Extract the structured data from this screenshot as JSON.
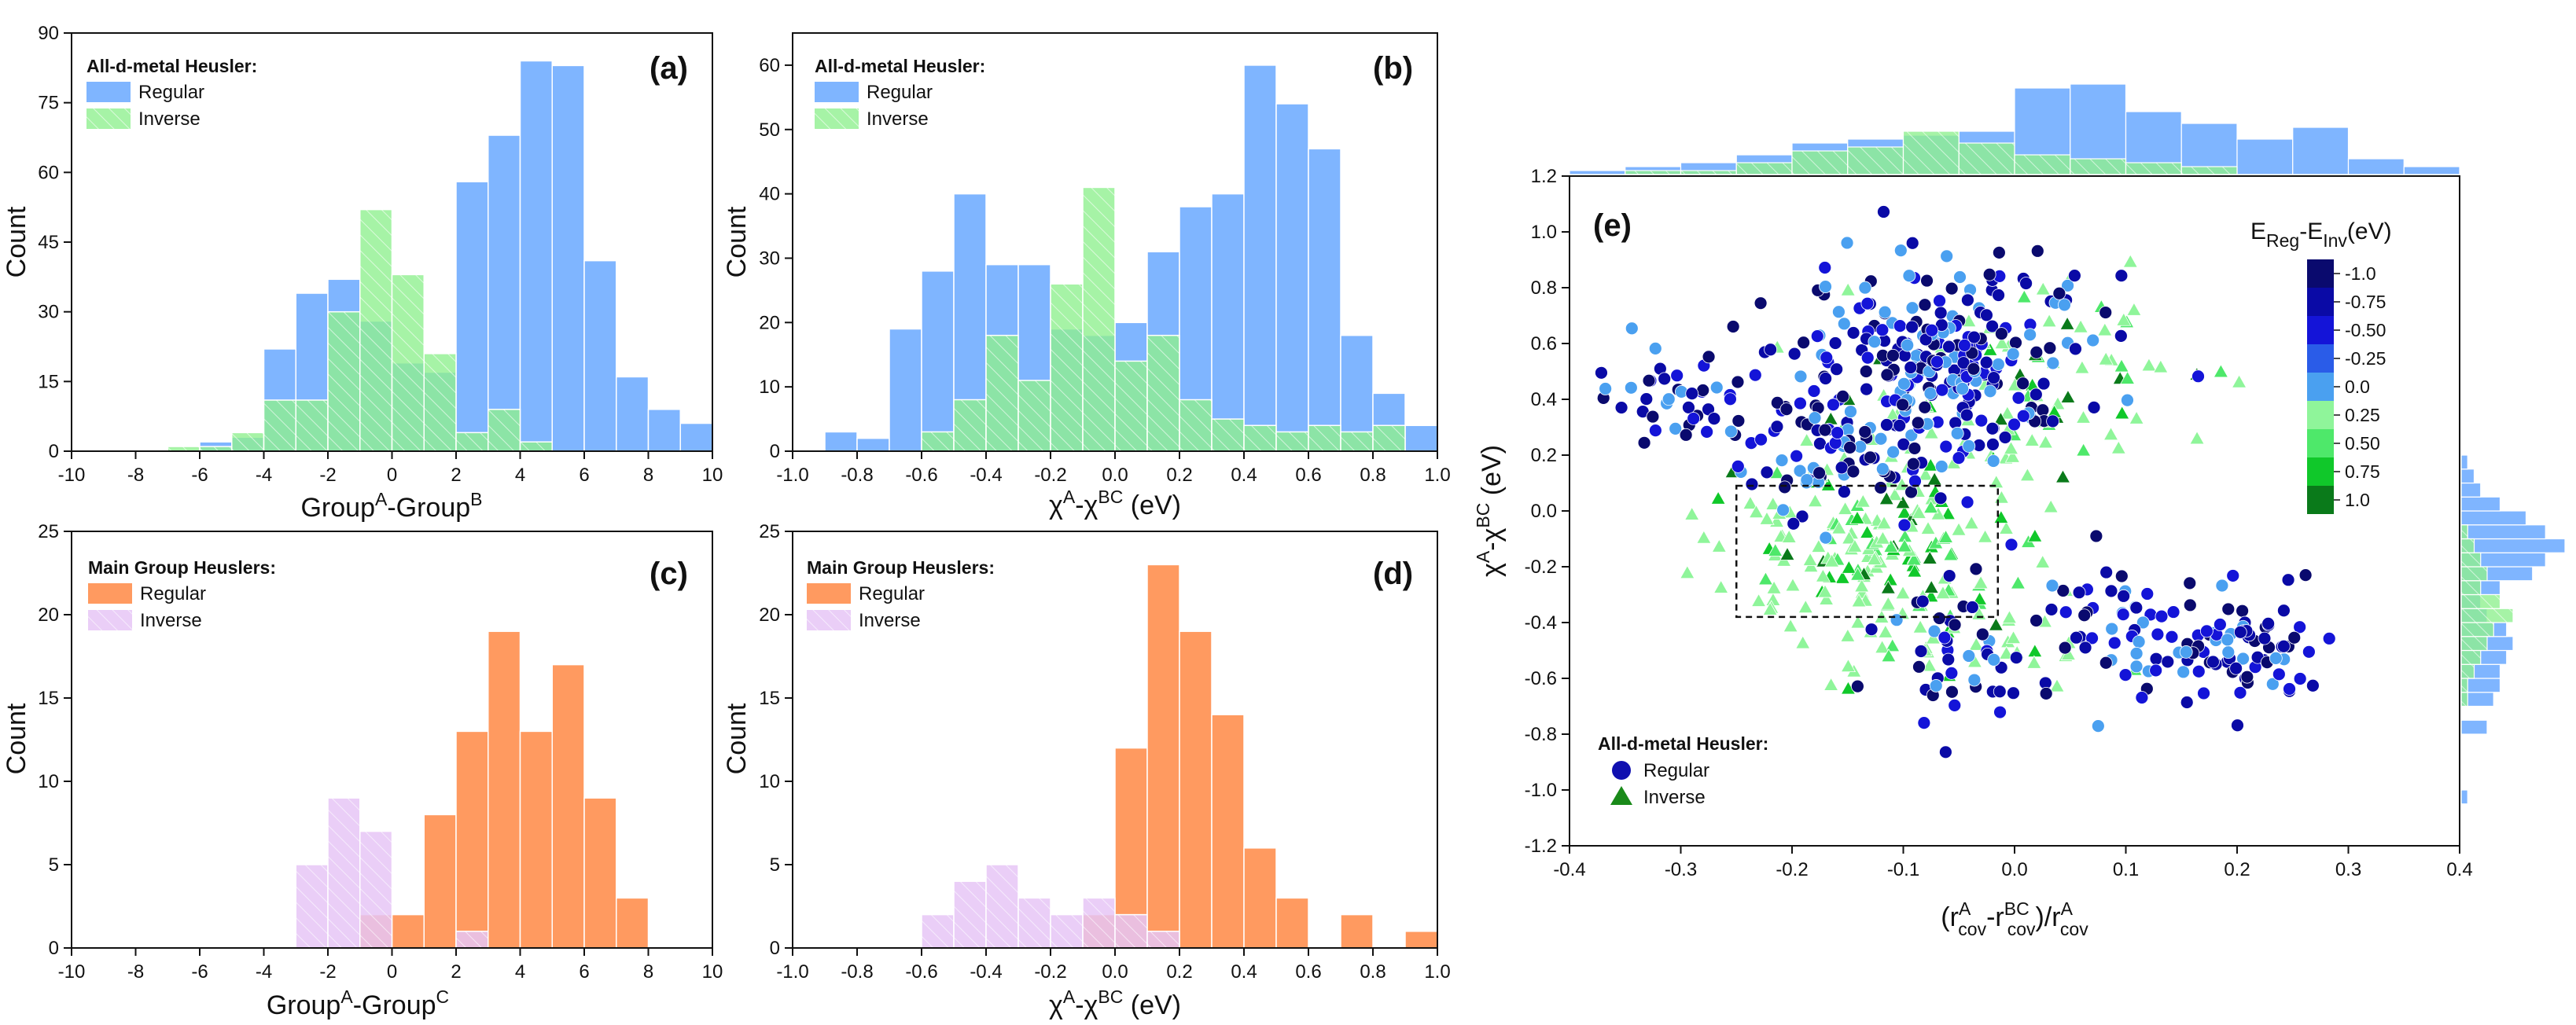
{
  "colors": {
    "regular_ad": "#7fb5ff",
    "inverse_ad": "#90f090",
    "regular_mg": "#ff9a60",
    "inverse_mg": "#e6c6f6",
    "axis": "#111111",
    "guide_box": "#111111"
  },
  "chart_data": [
    {
      "id": "a",
      "type": "bar",
      "panel_label": "(a)",
      "xlabel": "GroupA-GroupB",
      "xlabel_parts": {
        "base1": "Group",
        "sup1": "A",
        "mid": "-Group",
        "sup2": "B"
      },
      "ylabel": "Count",
      "xlim": [
        -10,
        10
      ],
      "ylim": [
        0,
        90
      ],
      "xticks": [
        "-10",
        "-8",
        "-6",
        "-4",
        "-2",
        "0",
        "2",
        "4",
        "6",
        "8",
        "10"
      ],
      "xtick_values": [
        -10,
        -8,
        -6,
        -4,
        -2,
        0,
        2,
        4,
        6,
        8,
        10
      ],
      "yticks": [
        "0",
        "15",
        "30",
        "45",
        "60",
        "75",
        "90"
      ],
      "ytick_values": [
        0,
        15,
        30,
        45,
        60,
        75,
        90
      ],
      "legend_title": "All-d-metal Heusler:",
      "legend_position": "top-left",
      "bin_width": 1,
      "series": [
        {
          "name": "Regular",
          "color_key": "regular_ad",
          "bins": [
            {
              "x0": -8,
              "v": 0
            },
            {
              "x0": -7,
              "v": 0
            },
            {
              "x0": -6,
              "v": 2
            },
            {
              "x0": -5,
              "v": 3
            },
            {
              "x0": -4,
              "v": 22
            },
            {
              "x0": -3,
              "v": 34
            },
            {
              "x0": -2,
              "v": 37
            },
            {
              "x0": -1,
              "v": 28
            },
            {
              "x0": 0,
              "v": 19
            },
            {
              "x0": 1,
              "v": 17
            },
            {
              "x0": 2,
              "v": 58
            },
            {
              "x0": 3,
              "v": 68
            },
            {
              "x0": 4,
              "v": 84
            },
            {
              "x0": 5,
              "v": 83
            },
            {
              "x0": 6,
              "v": 41
            },
            {
              "x0": 7,
              "v": 16
            },
            {
              "x0": 8,
              "v": 9
            },
            {
              "x0": 9,
              "v": 6
            }
          ]
        },
        {
          "name": "Inverse",
          "color_key": "inverse_ad",
          "bins": [
            {
              "x0": -8,
              "v": 0.3
            },
            {
              "x0": -7,
              "v": 1
            },
            {
              "x0": -6,
              "v": 1
            },
            {
              "x0": -5,
              "v": 4
            },
            {
              "x0": -4,
              "v": 11
            },
            {
              "x0": -3,
              "v": 11
            },
            {
              "x0": -2,
              "v": 30
            },
            {
              "x0": -1,
              "v": 52
            },
            {
              "x0": 0,
              "v": 38
            },
            {
              "x0": 1,
              "v": 21
            },
            {
              "x0": 2,
              "v": 4
            },
            {
              "x0": 3,
              "v": 9
            },
            {
              "x0": 4,
              "v": 2
            }
          ]
        }
      ]
    },
    {
      "id": "b",
      "type": "bar",
      "panel_label": "(b)",
      "xlabel": "χA-χBC (eV)",
      "xlabel_parts": {
        "base1": "χ",
        "sup1": "A",
        "mid": "-χ",
        "sup2": "BC",
        "tail": " (eV)"
      },
      "ylabel": "Count",
      "xlim": [
        -1.0,
        1.0
      ],
      "ylim": [
        0,
        65
      ],
      "xticks": [
        "-1.0",
        "-0.8",
        "-0.6",
        "-0.4",
        "-0.2",
        "0.0",
        "0.2",
        "0.4",
        "0.6",
        "0.8",
        "1.0"
      ],
      "xtick_values": [
        -1.0,
        -0.8,
        -0.6,
        -0.4,
        -0.2,
        0.0,
        0.2,
        0.4,
        0.6,
        0.8,
        1.0
      ],
      "yticks": [
        "0",
        "10",
        "20",
        "30",
        "40",
        "50",
        "60"
      ],
      "ytick_values": [
        0,
        10,
        20,
        30,
        40,
        50,
        60
      ],
      "legend_title": "All-d-metal Heusler:",
      "legend_position": "top-left",
      "bin_width": 0.1,
      "series": [
        {
          "name": "Regular",
          "color_key": "regular_ad",
          "bins": [
            {
              "x0": -0.9,
              "v": 3
            },
            {
              "x0": -0.8,
              "v": 2
            },
            {
              "x0": -0.7,
              "v": 19
            },
            {
              "x0": -0.6,
              "v": 28
            },
            {
              "x0": -0.5,
              "v": 40
            },
            {
              "x0": -0.4,
              "v": 29
            },
            {
              "x0": -0.3,
              "v": 29
            },
            {
              "x0": -0.2,
              "v": 19
            },
            {
              "x0": -0.1,
              "v": 18
            },
            {
              "x0": 0.0,
              "v": 20
            },
            {
              "x0": 0.1,
              "v": 31
            },
            {
              "x0": 0.2,
              "v": 38
            },
            {
              "x0": 0.3,
              "v": 40
            },
            {
              "x0": 0.4,
              "v": 60
            },
            {
              "x0": 0.5,
              "v": 54
            },
            {
              "x0": 0.6,
              "v": 47
            },
            {
              "x0": 0.7,
              "v": 18
            },
            {
              "x0": 0.8,
              "v": 9
            },
            {
              "x0": 0.9,
              "v": 4
            }
          ]
        },
        {
          "name": "Inverse",
          "color_key": "inverse_ad",
          "bins": [
            {
              "x0": -0.6,
              "v": 3
            },
            {
              "x0": -0.5,
              "v": 8
            },
            {
              "x0": -0.4,
              "v": 18
            },
            {
              "x0": -0.3,
              "v": 11
            },
            {
              "x0": -0.2,
              "v": 26
            },
            {
              "x0": -0.1,
              "v": 41
            },
            {
              "x0": 0.0,
              "v": 14
            },
            {
              "x0": 0.1,
              "v": 18
            },
            {
              "x0": 0.2,
              "v": 8
            },
            {
              "x0": 0.3,
              "v": 5
            },
            {
              "x0": 0.4,
              "v": 4
            },
            {
              "x0": 0.5,
              "v": 3
            },
            {
              "x0": 0.6,
              "v": 4
            },
            {
              "x0": 0.7,
              "v": 3
            },
            {
              "x0": 0.8,
              "v": 4
            }
          ]
        }
      ]
    },
    {
      "id": "c",
      "type": "bar",
      "panel_label": "(c)",
      "xlabel": "GroupA-GroupC",
      "xlabel_parts": {
        "base1": "Group",
        "sup1": "A",
        "mid": "-Group",
        "sup2": "C"
      },
      "ylabel": "Count",
      "xlim": [
        -10,
        10
      ],
      "ylim": [
        0,
        25
      ],
      "xticks": [
        "-10",
        "-8",
        "-6",
        "-4",
        "-2",
        "0",
        "2",
        "4",
        "6",
        "8",
        "10"
      ],
      "xtick_values": [
        -10,
        -8,
        -6,
        -4,
        -2,
        0,
        2,
        4,
        6,
        8,
        10
      ],
      "yticks": [
        "0",
        "5",
        "10",
        "15",
        "20",
        "25"
      ],
      "ytick_values": [
        0,
        5,
        10,
        15,
        20,
        25
      ],
      "legend_title": "Main Group Heuslers:",
      "legend_position": "top-left",
      "bin_width": 1,
      "series": [
        {
          "name": "Regular",
          "color_key": "regular_mg",
          "bins": [
            {
              "x0": -1,
              "v": 2
            },
            {
              "x0": 0,
              "v": 2
            },
            {
              "x0": 1,
              "v": 8
            },
            {
              "x0": 2,
              "v": 13
            },
            {
              "x0": 3,
              "v": 19
            },
            {
              "x0": 4,
              "v": 13
            },
            {
              "x0": 5,
              "v": 17
            },
            {
              "x0": 6,
              "v": 9
            },
            {
              "x0": 7,
              "v": 3
            }
          ]
        },
        {
          "name": "Inverse",
          "color_key": "inverse_mg",
          "bins": [
            {
              "x0": -3,
              "v": 5
            },
            {
              "x0": -2,
              "v": 9
            },
            {
              "x0": -1,
              "v": 7
            },
            {
              "x0": 2,
              "v": 1
            }
          ]
        }
      ]
    },
    {
      "id": "d",
      "type": "bar",
      "panel_label": "(d)",
      "xlabel": "χA-χBC (eV)",
      "xlabel_parts": {
        "base1": "χ",
        "sup1": "A",
        "mid": "-χ",
        "sup2": "BC",
        "tail": " (eV)"
      },
      "ylabel": "Count",
      "xlim": [
        -1.0,
        1.0
      ],
      "ylim": [
        0,
        25
      ],
      "xticks": [
        "-1.0",
        "-0.8",
        "-0.6",
        "-0.4",
        "-0.2",
        "0.0",
        "0.2",
        "0.4",
        "0.6",
        "0.8",
        "1.0"
      ],
      "xtick_values": [
        -1.0,
        -0.8,
        -0.6,
        -0.4,
        -0.2,
        0.0,
        0.2,
        0.4,
        0.6,
        0.8,
        1.0
      ],
      "yticks": [
        "0",
        "5",
        "10",
        "15",
        "20",
        "25"
      ],
      "ytick_values": [
        0,
        5,
        10,
        15,
        20,
        25
      ],
      "legend_title": "Main Group Heuslers:",
      "legend_position": "top-left",
      "bin_width": 0.1,
      "series": [
        {
          "name": "Regular",
          "color_key": "regular_mg",
          "bins": [
            {
              "x0": -0.1,
              "v": 2
            },
            {
              "x0": 0.0,
              "v": 12
            },
            {
              "x0": 0.1,
              "v": 23
            },
            {
              "x0": 0.2,
              "v": 19
            },
            {
              "x0": 0.3,
              "v": 14
            },
            {
              "x0": 0.4,
              "v": 6
            },
            {
              "x0": 0.5,
              "v": 3
            },
            {
              "x0": 0.7,
              "v": 2
            },
            {
              "x0": 0.9,
              "v": 1
            }
          ]
        },
        {
          "name": "Inverse",
          "color_key": "inverse_mg",
          "bins": [
            {
              "x0": -0.6,
              "v": 2
            },
            {
              "x0": -0.5,
              "v": 4
            },
            {
              "x0": -0.4,
              "v": 5
            },
            {
              "x0": -0.3,
              "v": 3
            },
            {
              "x0": -0.2,
              "v": 2
            },
            {
              "x0": -0.1,
              "v": 3
            },
            {
              "x0": 0.0,
              "v": 2
            },
            {
              "x0": 0.1,
              "v": 1
            }
          ]
        }
      ]
    },
    {
      "id": "e",
      "type": "scatter",
      "panel_label": "(e)",
      "xlabel": "(rAcov-rBCcov)/rAcov",
      "ylabel": "χA-χBC (eV)",
      "xlim": [
        -0.4,
        0.4
      ],
      "ylim": [
        -1.2,
        1.2
      ],
      "xticks": [
        "-0.4",
        "-0.3",
        "-0.2",
        "-0.1",
        "0.0",
        "0.1",
        "0.2",
        "0.3",
        "0.4"
      ],
      "xtick_values": [
        -0.4,
        -0.3,
        -0.2,
        -0.1,
        0.0,
        0.1,
        0.2,
        0.3,
        0.4
      ],
      "yticks": [
        "-1.2",
        "-1.0",
        "-0.8",
        "-0.6",
        "-0.4",
        "-0.2",
        "0.0",
        "0.2",
        "0.4",
        "0.6",
        "0.8",
        "1.0",
        "1.2"
      ],
      "ytick_values": [
        -1.2,
        -1.0,
        -0.8,
        -0.6,
        -0.4,
        -0.2,
        0.0,
        0.2,
        0.4,
        0.6,
        0.8,
        1.0,
        1.2
      ],
      "legend_title": "All-d-metal Heusler:",
      "legend_position": "bottom-left",
      "legend_items": [
        {
          "name": "Regular",
          "marker": "circle",
          "color": "#1010b0"
        },
        {
          "name": "Inverse",
          "marker": "triangle",
          "color": "#1a8a1a"
        }
      ],
      "colorbar": {
        "title": "EReg-EInv(eV)",
        "title_parts": {
          "base1": "E",
          "sub1": "Reg",
          "mid": "-E",
          "sub2": "Inv",
          "tail": "(eV)"
        },
        "ticks": [
          "-1.0",
          "-0.75",
          "-0.50",
          "-0.25",
          "0.0",
          "0.25",
          "0.50",
          "0.75",
          "1.0"
        ],
        "colors": [
          "#0a0a6e",
          "#0a0aa6",
          "#1414d8",
          "#2a5ce8",
          "#4aa0f0",
          "#8ff59a",
          "#4ee86a",
          "#10c82a",
          "#0a7a1a"
        ]
      },
      "guide_box": {
        "x": [
          -0.25,
          -0.015
        ],
        "y": [
          -0.38,
          0.09
        ]
      },
      "clusters": [
        {
          "kind": "regular",
          "cx": -0.06,
          "cy": 0.55,
          "sx": 0.06,
          "sy": 0.18,
          "n": 260,
          "seed": 11
        },
        {
          "kind": "regular",
          "cx": -0.3,
          "cy": 0.38,
          "sx": 0.05,
          "sy": 0.09,
          "n": 45,
          "seed": 12
        },
        {
          "kind": "regular",
          "cx": -0.17,
          "cy": 0.2,
          "sx": 0.05,
          "sy": 0.12,
          "n": 70,
          "seed": 13
        },
        {
          "kind": "regular",
          "cx": 0.2,
          "cy": -0.5,
          "sx": 0.04,
          "sy": 0.09,
          "n": 65,
          "seed": 14
        },
        {
          "kind": "regular",
          "cx": 0.07,
          "cy": -0.38,
          "sx": 0.07,
          "sy": 0.14,
          "n": 70,
          "seed": 15
        },
        {
          "kind": "regular",
          "cx": -0.05,
          "cy": -0.6,
          "sx": 0.05,
          "sy": 0.12,
          "n": 35,
          "seed": 16
        },
        {
          "kind": "inverse",
          "cx": -0.13,
          "cy": -0.12,
          "sx": 0.07,
          "sy": 0.16,
          "n": 170,
          "seed": 21
        },
        {
          "kind": "inverse",
          "cx": 0.0,
          "cy": 0.42,
          "sx": 0.08,
          "sy": 0.2,
          "n": 90,
          "seed": 22
        },
        {
          "kind": "inverse",
          "cx": -0.05,
          "cy": -0.45,
          "sx": 0.07,
          "sy": 0.12,
          "n": 40,
          "seed": 23
        }
      ],
      "top_marginal": {
        "bin_width": 0.05,
        "xstart": -0.4,
        "regular": [
          1,
          2,
          3,
          5,
          8,
          9,
          10,
          11,
          22,
          23,
          16,
          13,
          9,
          12,
          4,
          2
        ],
        "inverse": [
          0,
          1,
          1,
          3,
          6,
          7,
          11,
          8,
          5,
          4,
          3,
          2,
          0,
          0,
          0,
          0
        ]
      },
      "right_marginal": {
        "bin_width": 0.05,
        "ystart": -1.2,
        "regular": [
          0,
          0,
          0,
          1,
          0,
          0,
          0,
          0,
          4,
          0,
          5,
          6,
          6,
          7,
          8,
          7,
          4,
          3,
          6,
          11,
          13,
          16,
          13,
          10,
          6,
          3,
          2,
          1
        ],
        "inverse": [
          0,
          0,
          0,
          0,
          0,
          0,
          0,
          0,
          0,
          0,
          1,
          1,
          2,
          3,
          4,
          5,
          8,
          6,
          3,
          4,
          3,
          2,
          1,
          0,
          0,
          0,
          0,
          0
        ]
      }
    }
  ]
}
